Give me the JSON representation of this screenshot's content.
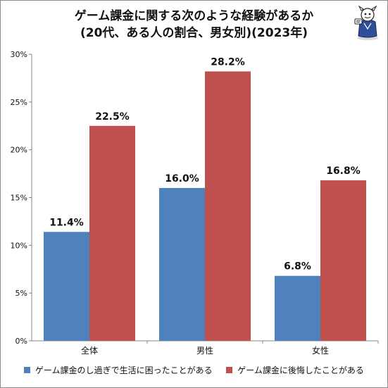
{
  "chart_data": {
    "type": "bar",
    "title": "ゲーム課金に関する次のような経験があるか",
    "subtitle": "(20代、ある人の割合、男女別)(2023年)",
    "categories": [
      "全体",
      "男性",
      "女性"
    ],
    "series": [
      {
        "name": "ゲーム課金のし過ぎで生活に困ったことがある",
        "values": [
          11.4,
          16.0,
          6.8
        ],
        "labels": [
          "11.4%",
          "16.0%",
          "6.8%"
        ],
        "color": "#4f81bd"
      },
      {
        "name": "ゲーム課金に後悔したことがある",
        "values": [
          22.5,
          28.2,
          16.8
        ],
        "labels": [
          "22.5%",
          "28.2%",
          "16.8%"
        ],
        "color": "#c0504d"
      }
    ],
    "ylim": [
      0,
      30
    ],
    "yticks": [
      0,
      5,
      10,
      15,
      20,
      25,
      30
    ],
    "ytick_labels": [
      "0%",
      "5%",
      "10%",
      "15%",
      "20%",
      "25%",
      "30%"
    ],
    "grid": false,
    "legend_position": "bottom"
  },
  "colors": {
    "axis": "#868686",
    "text": "#111111"
  },
  "mascot_icon": "mascot-illustration"
}
